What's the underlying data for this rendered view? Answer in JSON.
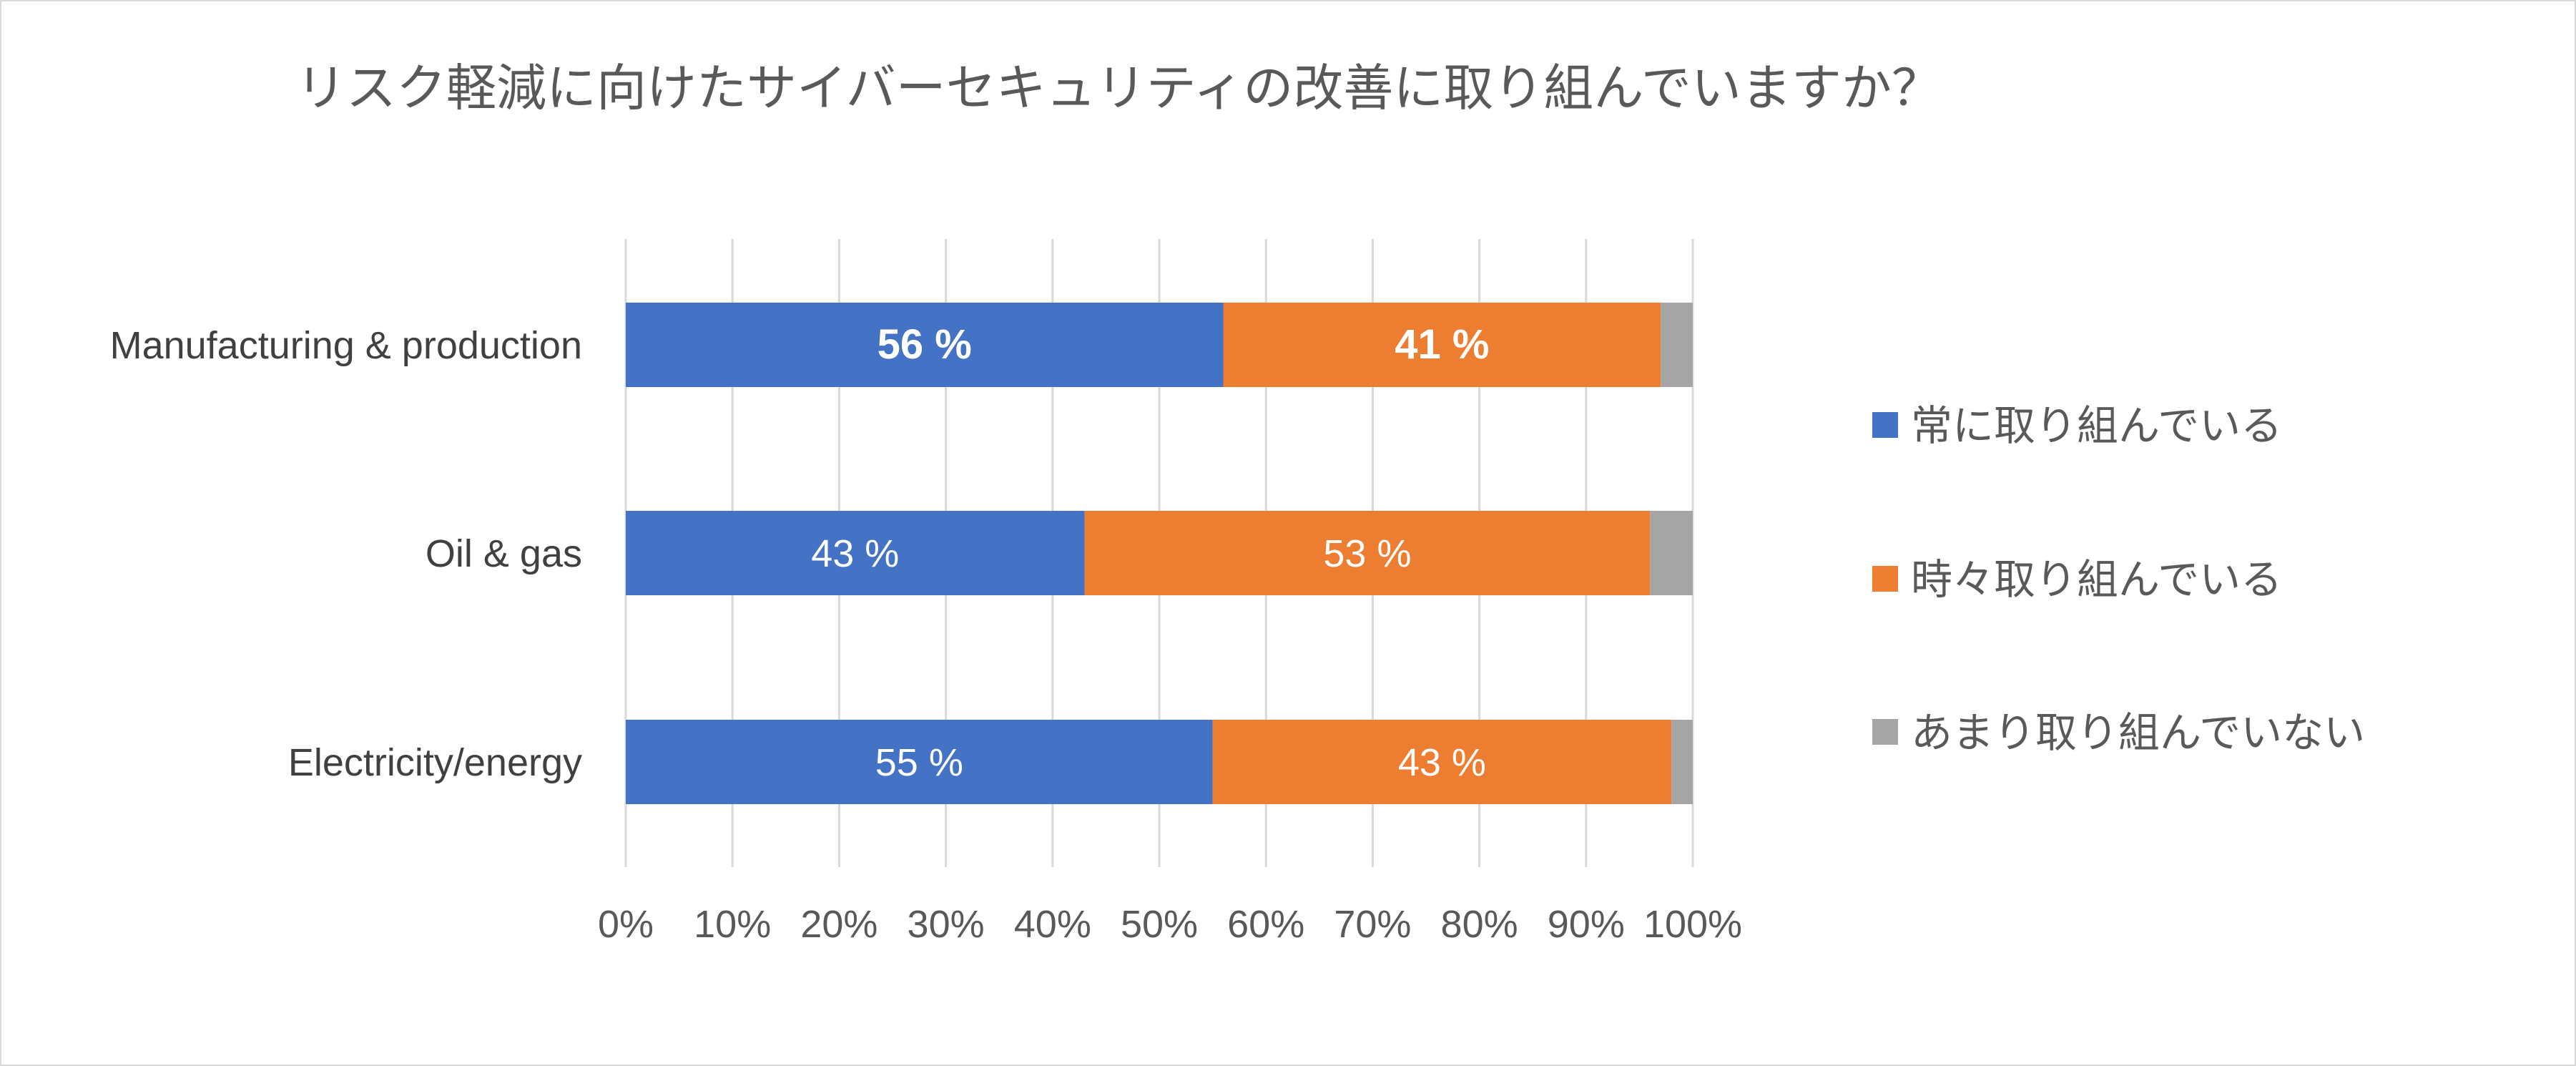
{
  "chart_data": {
    "type": "bar",
    "orientation": "horizontal",
    "stacked": "percent",
    "title": "リスク軽減に向けたサイバーセキュリティの改善に取り組んでいますか？",
    "categories": [
      "Manufacturing & production",
      "Oil & gas",
      "Electricity/energy"
    ],
    "series": [
      {
        "name": "常に取り組んでいる",
        "color": "#4472C4",
        "values": [
          56,
          43,
          55
        ],
        "labels": [
          "56 %",
          "43 %",
          "55 %"
        ],
        "label_bold": [
          true,
          false,
          false
        ]
      },
      {
        "name": "時々取り組んでいる",
        "color": "#ED7D31",
        "values": [
          41,
          53,
          43
        ],
        "labels": [
          "41 %",
          "53 %",
          "43 %"
        ],
        "label_bold": [
          true,
          false,
          false
        ]
      },
      {
        "name": "あまり取り組んでいない",
        "color": "#A5A5A5",
        "values": [
          3,
          4,
          2
        ],
        "labels": [
          "",
          "",
          ""
        ],
        "label_bold": [
          false,
          false,
          false
        ]
      }
    ],
    "xlim": [
      0,
      100
    ],
    "xticks": [
      "0%",
      "10%",
      "20%",
      "30%",
      "40%",
      "50%",
      "60%",
      "70%",
      "80%",
      "90%",
      "100%"
    ],
    "grid": true,
    "legend": "right"
  }
}
